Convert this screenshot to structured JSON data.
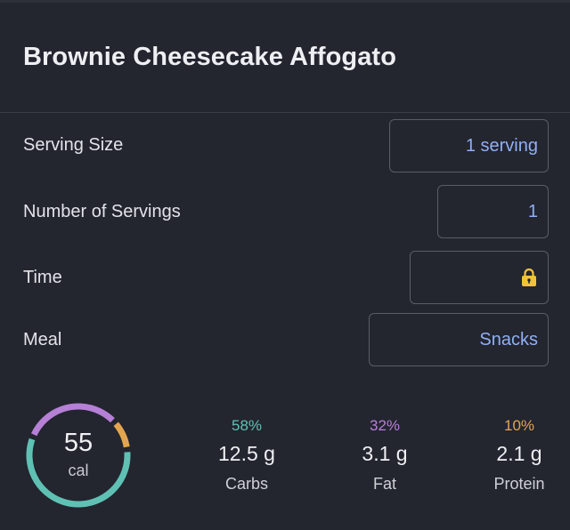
{
  "recipe": {
    "title": "Brownie Cheesecake Affogato"
  },
  "form": {
    "serving_size": {
      "label": "Serving Size",
      "value": "1 serving"
    },
    "servings": {
      "label": "Number of Servings",
      "value": "1"
    },
    "time": {
      "label": "Time",
      "icon": "lock-icon"
    },
    "meal": {
      "label": "Meal",
      "value": "Snacks"
    }
  },
  "summary": {
    "calories": "55",
    "calories_unit": "cal",
    "ring_fractions": {
      "carbs": 0.58,
      "fat": 0.32,
      "protein": 0.1
    },
    "colors": {
      "carbs": "#5fc1b4",
      "fat": "#b680d6",
      "protein": "#e3a64f",
      "value_text": "#8fb0f5",
      "lock": "#f2c338"
    },
    "macros": {
      "carbs": {
        "pct": "58%",
        "amount": "12.5 g",
        "name": "Carbs"
      },
      "fat": {
        "pct": "32%",
        "amount": "3.1 g",
        "name": "Fat"
      },
      "protein": {
        "pct": "10%",
        "amount": "2.1 g",
        "name": "Protein"
      }
    }
  }
}
